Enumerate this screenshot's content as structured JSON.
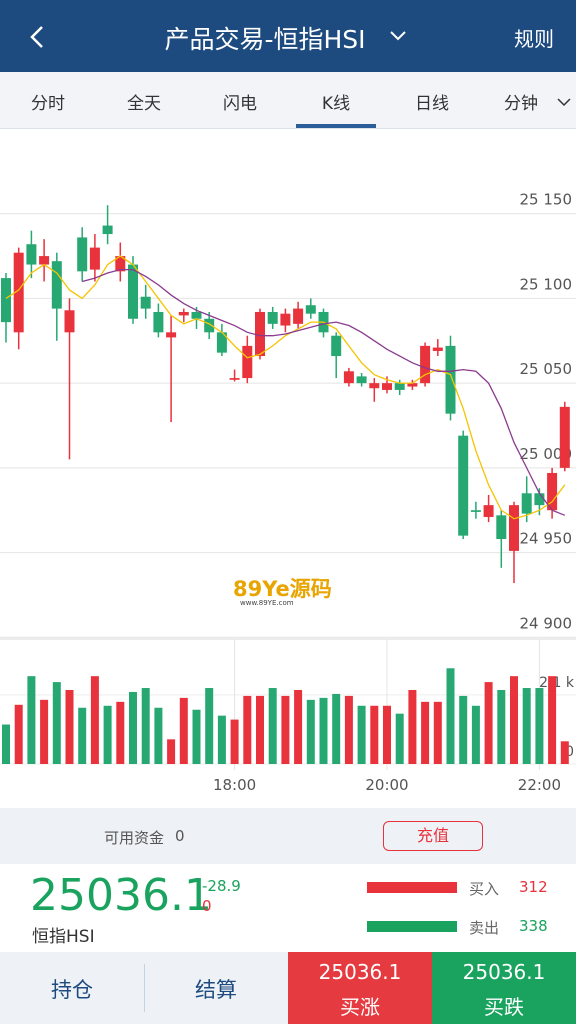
{
  "header": {
    "title": "产品交易-恒指HSI",
    "rules": "规则"
  },
  "tabs": [
    "分时",
    "全天",
    "闪电",
    "K线",
    "日线",
    "分钟"
  ],
  "active_tab": 3,
  "chart_data": [
    {
      "type": "candlestick",
      "up_color": "#e8323c",
      "down_color": "#27a872",
      "categories": [
        null,
        null,
        null,
        null,
        null,
        null,
        null,
        null,
        null,
        null,
        null,
        null,
        null,
        null,
        null,
        null,
        null,
        null,
        "18:00",
        null,
        null,
        null,
        null,
        null,
        null,
        null,
        null,
        null,
        null,
        null,
        "20:00",
        null,
        null,
        null,
        null,
        null,
        null,
        null,
        null,
        null,
        null,
        null,
        "22:00",
        null,
        null
      ],
      "open": [
        25112,
        25080,
        25132,
        25120,
        25122,
        25080,
        25136,
        25117,
        25143,
        25116,
        25120,
        25101,
        25092,
        25077,
        25090,
        25092,
        25088,
        25080,
        25052,
        25053,
        25066,
        25092,
        25084,
        25085,
        25096,
        25092,
        25078,
        25050,
        25054,
        25047,
        25046,
        25050,
        25048,
        25050,
        25069,
        25072,
        25019,
        24975,
        24971,
        24972,
        24951,
        24985,
        24985,
        24975,
        25000
      ],
      "high": [
        25115,
        25130,
        25140,
        25135,
        25127,
        25100,
        25142,
        25138,
        25155,
        25133,
        25125,
        25108,
        25097,
        25090,
        25094,
        25095,
        25092,
        25085,
        25058,
        25078,
        25094,
        25095,
        25094,
        25098,
        25100,
        25094,
        25080,
        25059,
        25056,
        25053,
        25054,
        25052,
        25052,
        25074,
        25076,
        25078,
        25022,
        24980,
        24984,
        24975,
        24980,
        24995,
        24988,
        25000,
        25039
      ],
      "low": [
        25074,
        25070,
        25112,
        25110,
        25075,
        25005,
        25110,
        25110,
        25132,
        25110,
        25085,
        25088,
        25077,
        25027,
        25086,
        25082,
        25076,
        25066,
        25051,
        25050,
        25064,
        25082,
        25080,
        25082,
        25088,
        25077,
        25053,
        25048,
        25048,
        25039,
        25044,
        25043,
        25046,
        25048,
        25066,
        25028,
        24958,
        24970,
        24968,
        24941,
        24932,
        24968,
        24972,
        24970,
        24998
      ],
      "close": [
        25086,
        25127,
        25120,
        25125,
        25094,
        25093,
        25116,
        25130,
        25138,
        25125,
        25088,
        25094,
        25080,
        25080,
        25092,
        25088,
        25080,
        25068,
        25053,
        25072,
        25092,
        25085,
        25091,
        25094,
        25091,
        25080,
        25066,
        25057,
        25050,
        25050,
        25050,
        25046,
        25050,
        25072,
        25071,
        25032,
        24960,
        24974,
        24978,
        24958,
        24978,
        24973,
        24978,
        24997,
        25036
      ],
      "lines": [
        {
          "color": "#f5c400",
          "values": [
            25100,
            25105,
            25115,
            25120,
            25115,
            25105,
            25100,
            25108,
            25120,
            25125,
            25120,
            25110,
            25100,
            25090,
            25085,
            25088,
            25085,
            25080,
            25072,
            25065,
            25067,
            25072,
            25078,
            25082,
            25086,
            25086,
            25082,
            25072,
            25062,
            25055,
            25052,
            25050,
            25050,
            25055,
            25058,
            25055,
            25035,
            25010,
            24990,
            24975,
            24970,
            24972,
            24975,
            24980,
            24990
          ]
        },
        {
          "color": "#8b3a8f",
          "values": [
            null,
            null,
            null,
            null,
            null,
            null,
            25110,
            25112,
            25115,
            25117,
            25117,
            25113,
            25108,
            25102,
            25097,
            25093,
            25090,
            25087,
            25084,
            25080,
            25078,
            25078,
            25079,
            25081,
            25083,
            25085,
            25086,
            25084,
            25080,
            25075,
            25070,
            25066,
            25062,
            25059,
            25057,
            25057,
            25058,
            25057,
            25050,
            25035,
            25015,
            25000,
            24985,
            24975,
            24972
          ]
        }
      ],
      "ylim": [
        24899,
        25200
      ],
      "yticks": [
        {
          "value": 24900,
          "label": "24 900"
        },
        {
          "value": 24950,
          "label": "24 950"
        },
        {
          "value": 25000,
          "label": "25 000"
        },
        {
          "value": 25050,
          "label": "25 050"
        },
        {
          "value": 25100,
          "label": "25 100"
        },
        {
          "value": 25150,
          "label": "25 150"
        }
      ],
      "grid": true
    },
    {
      "type": "bar",
      "values": [
        1200,
        1800,
        2670,
        1950,
        2490,
        2250,
        1710,
        2670,
        1770,
        1890,
        2190,
        2310,
        1710,
        750,
        2010,
        1650,
        2310,
        1470,
        1350,
        2070,
        2070,
        2310,
        2070,
        2250,
        1950,
        2010,
        2130,
        2070,
        1770,
        1770,
        1770,
        1530,
        2250,
        1890,
        1890,
        2910,
        2070,
        1770,
        2490,
        2250,
        2670,
        2310,
        2310,
        2670,
        690
      ],
      "ylim": [
        0,
        3800
      ],
      "yticks": [
        0,
        {
          "value": 2100,
          "label": "2.1 k"
        }
      ]
    }
  ],
  "watermark": {
    "logo": "89Ye源码",
    "url": "www.89YE.com"
  },
  "account": {
    "label": "可用资金",
    "value": 0,
    "button": "充值"
  },
  "quote": {
    "price": 25036.1,
    "change": -28.9,
    "change_pct": 0,
    "name": "恒指HSI"
  },
  "orders": {
    "buy_label": "买入",
    "buy_count": 312,
    "sell_label": "卖出",
    "sell_count": 338
  },
  "footer": {
    "positions": "持仓",
    "settle": "结算",
    "buy_up_price": 25036.1,
    "buy_up": "买涨",
    "buy_down_price": 25036.1,
    "buy_down": "买跌"
  }
}
